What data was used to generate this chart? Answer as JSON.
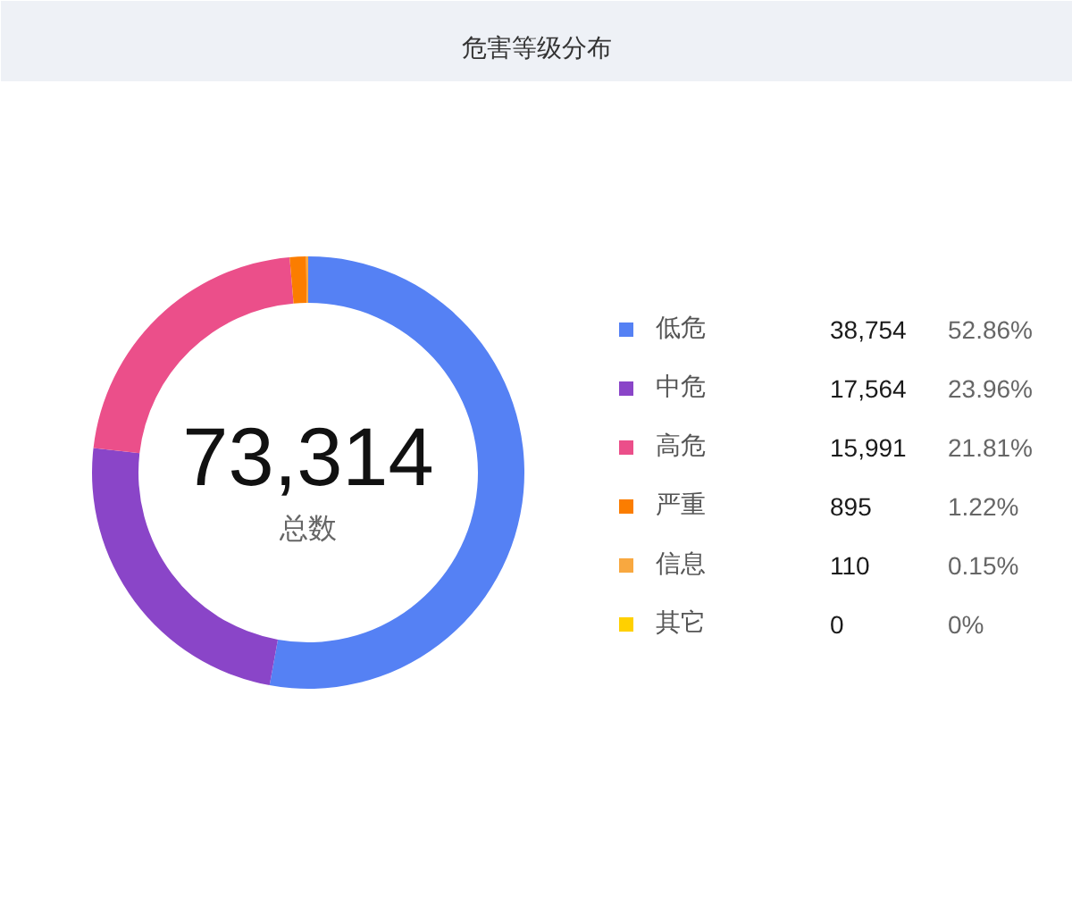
{
  "chart_data": {
    "type": "donut",
    "title": "危害等级分布",
    "categories": [
      "低危",
      "中危",
      "高危",
      "严重",
      "信息",
      "其它"
    ],
    "values": [
      38754,
      17564,
      15991,
      895,
      110,
      0
    ],
    "colors": [
      "#5581f4",
      "#8a45c8",
      "#eb4f8a",
      "#fb7d00",
      "#f8a840",
      "#ffd000"
    ],
    "value_labels": [
      "38,754",
      "17,564",
      "15,991",
      "895",
      "110",
      "0"
    ],
    "totals": [
      "73,314"
    ],
    "annotations": [
      "总数",
      "52.86%",
      "23.96%",
      "21.81%",
      "1.22%",
      "0.15%",
      "0%"
    ],
    "legend": "right"
  }
}
